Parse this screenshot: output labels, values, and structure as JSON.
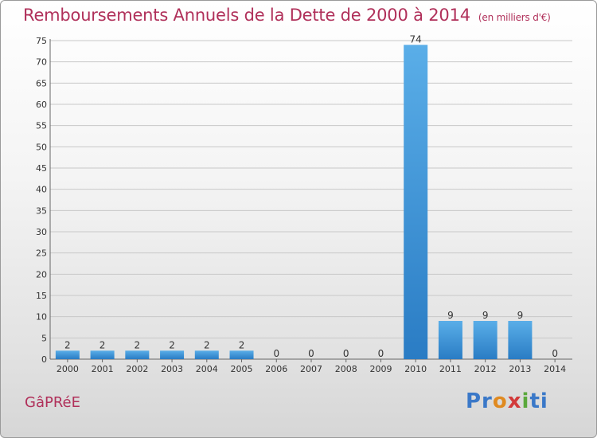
{
  "chart_data": {
    "type": "bar",
    "title": "Remboursements Annuels de la Dette de 2000 à 2014",
    "unit_label": "(en milliers d'€)",
    "categories": [
      "2000",
      "2001",
      "2002",
      "2003",
      "2004",
      "2005",
      "2006",
      "2007",
      "2008",
      "2009",
      "2010",
      "2011",
      "2012",
      "2013",
      "2014"
    ],
    "values": [
      2,
      2,
      2,
      2,
      2,
      2,
      0,
      0,
      0,
      0,
      74,
      9,
      9,
      9,
      0
    ],
    "ylim": [
      0,
      75
    ],
    "yticks": [
      0,
      5,
      10,
      15,
      20,
      25,
      30,
      35,
      40,
      45,
      50,
      55,
      60,
      65,
      70,
      75
    ],
    "grid": true,
    "bar_color": "#3a8fd8"
  },
  "footer": {
    "commune": "GâPRéE",
    "logo_parts": [
      "Pr",
      "o",
      "x",
      "i",
      "ti"
    ]
  },
  "colors": {
    "title": "#b0305a",
    "grid": "#c8c8c8"
  }
}
